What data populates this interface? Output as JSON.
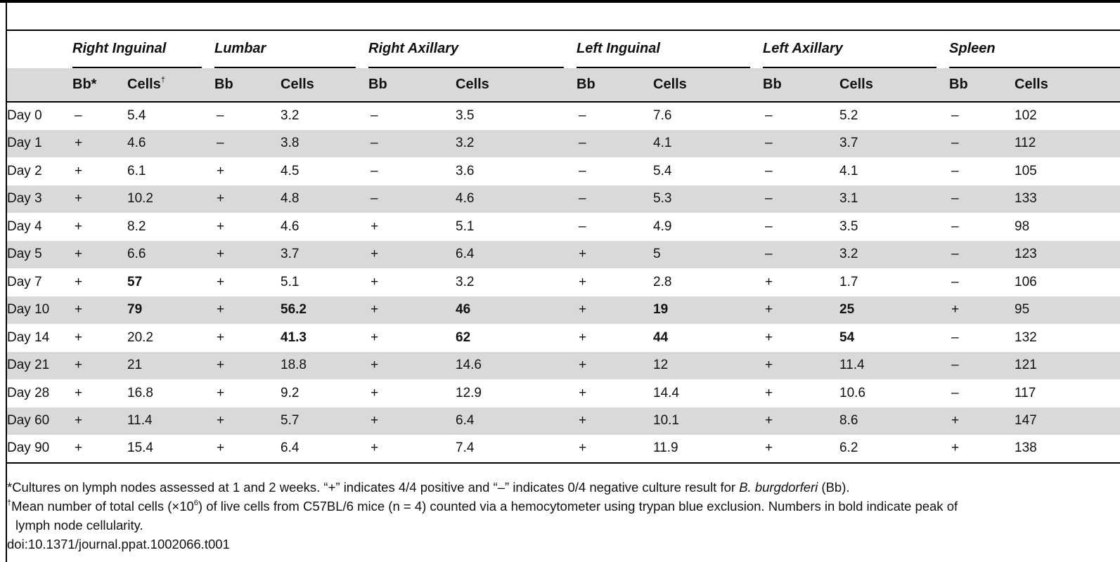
{
  "table": {
    "groups": [
      "Right Inguinal",
      "Lumbar",
      "Right Axillary",
      "Left Inguinal",
      "Left Axillary",
      "Spleen"
    ],
    "sub_headers": [
      {
        "bb": "Bb*",
        "cells": "Cells",
        "cells_mark": "†"
      },
      {
        "bb": "Bb",
        "cells": "Cells",
        "cells_mark": ""
      },
      {
        "bb": "Bb",
        "cells": "Cells",
        "cells_mark": ""
      },
      {
        "bb": "Bb",
        "cells": "Cells",
        "cells_mark": ""
      },
      {
        "bb": "Bb",
        "cells": "Cells",
        "cells_mark": ""
      },
      {
        "bb": "Bb",
        "cells": "Cells",
        "cells_mark": ""
      }
    ],
    "rows": [
      {
        "day": "Day 0",
        "values": [
          "–",
          "5.4",
          "–",
          "3.2",
          "–",
          "3.5",
          "–",
          "7.6",
          "–",
          "5.2",
          "–",
          "102"
        ],
        "bold": []
      },
      {
        "day": "Day 1",
        "values": [
          "+",
          "4.6",
          "–",
          "3.8",
          "–",
          "3.2",
          "–",
          "4.1",
          "–",
          "3.7",
          "–",
          "112"
        ],
        "bold": []
      },
      {
        "day": "Day 2",
        "values": [
          "+",
          "6.1",
          "+",
          "4.5",
          "–",
          "3.6",
          "–",
          "5.4",
          "–",
          "4.1",
          "–",
          "105"
        ],
        "bold": []
      },
      {
        "day": "Day 3",
        "values": [
          "+",
          "10.2",
          "+",
          "4.8",
          "–",
          "4.6",
          "–",
          "5.3",
          "–",
          "3.1",
          "–",
          "133"
        ],
        "bold": []
      },
      {
        "day": "Day 4",
        "values": [
          "+",
          "8.2",
          "+",
          "4.6",
          "+",
          "5.1",
          "–",
          "4.9",
          "–",
          "3.5",
          "–",
          "98"
        ],
        "bold": []
      },
      {
        "day": "Day 5",
        "values": [
          "+",
          "6.6",
          "+",
          "3.7",
          "+",
          "6.4",
          "+",
          "5",
          "–",
          "3.2",
          "–",
          "123"
        ],
        "bold": []
      },
      {
        "day": "Day 7",
        "values": [
          "+",
          "57",
          "+",
          "5.1",
          "+",
          "3.2",
          "+",
          "2.8",
          "+",
          "1.7",
          "–",
          "106"
        ],
        "bold": [
          1
        ]
      },
      {
        "day": "Day 10",
        "values": [
          "+",
          "79",
          "+",
          "56.2",
          "+",
          "46",
          "+",
          "19",
          "+",
          "25",
          "+",
          "95"
        ],
        "bold": [
          1,
          3,
          5,
          7,
          9
        ]
      },
      {
        "day": "Day 14",
        "values": [
          "+",
          "20.2",
          "+",
          "41.3",
          "+",
          "62",
          "+",
          "44",
          "+",
          "54",
          "–",
          "132"
        ],
        "bold": [
          3,
          5,
          7,
          9
        ]
      },
      {
        "day": "Day 21",
        "values": [
          "+",
          "21",
          "+",
          "18.8",
          "+",
          "14.6",
          "+",
          "12",
          "+",
          "11.4",
          "–",
          "121"
        ],
        "bold": []
      },
      {
        "day": "Day 28",
        "values": [
          "+",
          "16.8",
          "+",
          "9.2",
          "+",
          "12.9",
          "+",
          "14.4",
          "+",
          "10.6",
          "–",
          "117"
        ],
        "bold": []
      },
      {
        "day": "Day 60",
        "values": [
          "+",
          "11.4",
          "+",
          "5.7",
          "+",
          "6.4",
          "+",
          "10.1",
          "+",
          "8.6",
          "+",
          "147"
        ],
        "bold": []
      },
      {
        "day": "Day 90",
        "values": [
          "+",
          "15.4",
          "+",
          "6.4",
          "+",
          "7.4",
          "+",
          "11.9",
          "+",
          "6.2",
          "+",
          "138"
        ],
        "bold": []
      }
    ]
  },
  "footnotes": {
    "fn1_text": "*Cultures on lymph nodes assessed at 1 and 2 weeks. “+” indicates 4/4 positive and “–” indicates 0/4 negative culture result for ",
    "fn1_species": "B. burgdorferi",
    "fn1_end": " (Bb).",
    "fn2_mark": "†",
    "fn2_text_a": "Mean number of total cells (×10",
    "fn2_exp": "6",
    "fn2_text_b": ") of live cells from C57BL/6 mice (n = 4) counted via a hemocytometer using trypan blue exclusion. Numbers in bold indicate peak of",
    "fn2_text_c": "lymph node cellularity.",
    "doi": "doi:10.1371/journal.ppat.1002066.t001"
  }
}
